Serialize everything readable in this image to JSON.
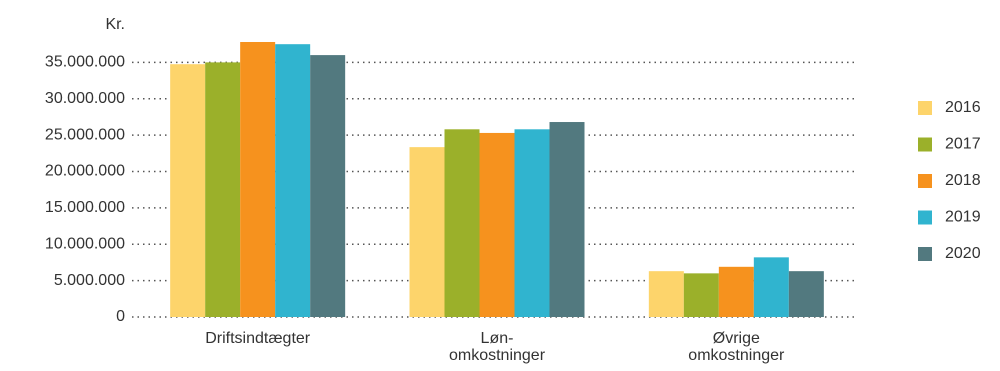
{
  "chart_data": {
    "type": "bar",
    "y_label": "Kr.",
    "categories": [
      "Driftsindtægter",
      "Løn-\nomkostninger",
      "Øvrige\nomkostninger"
    ],
    "series": [
      {
        "name": "2016",
        "color": "#fdd46b",
        "values": [
          34750000,
          23350000,
          6300000
        ]
      },
      {
        "name": "2017",
        "color": "#9bb02a",
        "values": [
          35000000,
          25800000,
          6000000
        ]
      },
      {
        "name": "2018",
        "color": "#f6921e",
        "values": [
          37800000,
          25300000,
          6900000
        ]
      },
      {
        "name": "2019",
        "color": "#30b4cf",
        "values": [
          37500000,
          25800000,
          8200000
        ]
      },
      {
        "name": "2020",
        "color": "#52797f",
        "values": [
          36000000,
          26800000,
          6300000
        ]
      }
    ],
    "ylim": [
      0,
      40000000
    ],
    "yticks": [
      0,
      {
        "value": 5000000,
        "label": "5.000.000"
      },
      {
        "value": 10000000,
        "label": "10.000.000"
      },
      {
        "value": 15000000,
        "label": "15.000.000"
      },
      {
        "value": 20000000,
        "label": "20.000.000"
      },
      {
        "value": 25000000,
        "label": "25.000.000"
      },
      {
        "value": 30000000,
        "label": "30.000.000"
      },
      {
        "value": 35000000,
        "label": "35.000.000"
      }
    ],
    "grid": true,
    "legend": "right"
  }
}
